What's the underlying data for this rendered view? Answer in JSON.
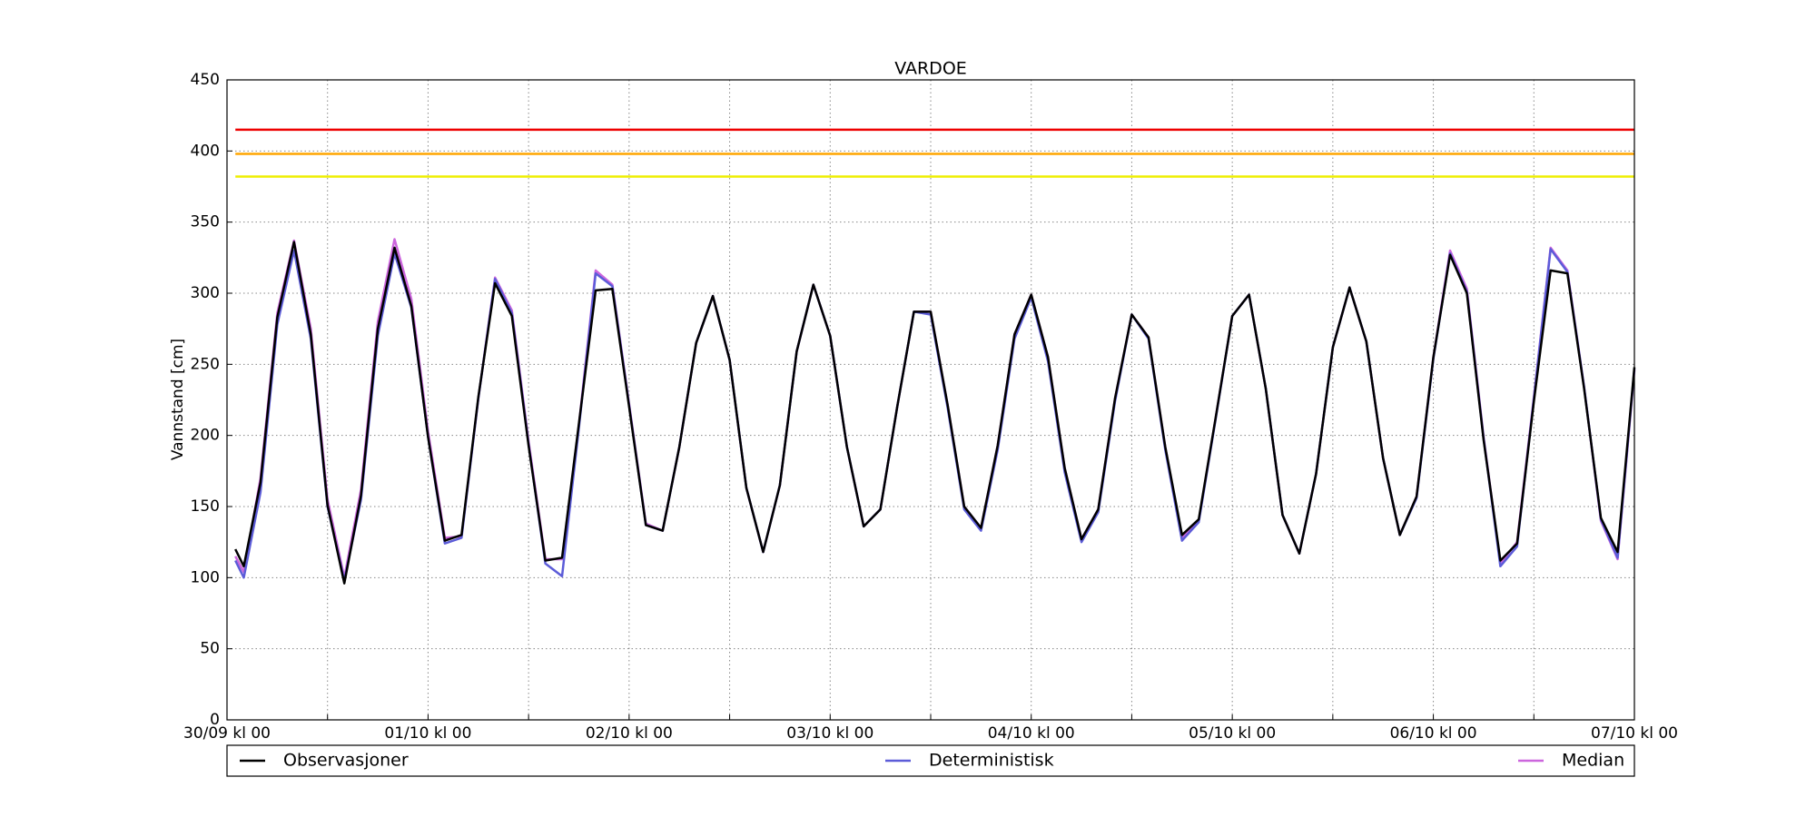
{
  "chart_data": {
    "type": "line",
    "title": "VARDOE",
    "y_label": "Vannstand [cm]",
    "x": [
      1,
      2,
      4,
      6,
      8,
      10,
      12,
      14,
      16,
      18,
      20,
      22,
      24,
      26,
      28,
      30,
      32,
      34,
      36,
      38,
      40,
      42,
      44,
      46,
      48,
      50,
      52,
      54,
      56,
      58,
      60,
      62,
      64,
      66,
      68,
      70,
      72,
      74,
      76,
      78,
      80,
      82,
      84,
      86,
      88,
      90,
      92,
      94,
      96,
      98,
      100,
      102,
      104,
      106,
      108,
      110,
      112,
      114,
      116,
      118,
      120,
      122,
      124,
      126,
      128,
      130,
      132,
      134,
      136,
      138,
      140,
      142,
      144,
      146,
      148,
      150,
      152,
      154,
      156,
      158,
      160,
      162,
      164,
      166,
      168
    ],
    "series": [
      {
        "name": "Median",
        "color": "#cc66dd",
        "values": [
          115,
          104,
          170,
          286,
          337,
          275,
          155,
          100,
          162,
          280,
          338,
          296,
          203,
          128,
          129,
          226,
          311,
          288,
          196,
          113,
          113,
          207,
          316,
          306,
          222,
          138,
          133,
          192,
          265,
          298,
          253,
          163,
          118,
          165,
          259,
          306,
          270,
          192,
          136,
          148,
          220,
          287,
          287,
          222,
          150,
          135,
          193,
          271,
          299,
          255,
          177,
          127,
          148,
          226,
          285,
          269,
          192,
          128,
          140,
          212,
          284,
          299,
          233,
          144,
          117,
          173,
          262,
          304,
          266,
          184,
          130,
          157,
          255,
          330,
          303,
          199,
          110,
          125,
          227,
          332,
          316,
          234,
          140,
          113,
          246
        ]
      },
      {
        "name": "Deterministisk",
        "color": "#5c5cd8",
        "values": [
          112,
          100,
          160,
          278,
          330,
          268,
          150,
          98,
          155,
          270,
          328,
          290,
          199,
          124,
          128,
          226,
          310,
          286,
          194,
          110,
          101,
          205,
          314,
          305,
          221,
          137,
          133,
          192,
          265,
          298,
          253,
          163,
          118,
          165,
          259,
          306,
          270,
          192,
          136,
          148,
          220,
          287,
          285,
          220,
          148,
          133,
          190,
          268,
          297,
          252,
          174,
          125,
          146,
          224,
          285,
          268,
          190,
          126,
          139,
          211,
          284,
          299,
          233,
          144,
          117,
          173,
          262,
          304,
          266,
          184,
          130,
          156,
          254,
          328,
          301,
          198,
          108,
          122,
          226,
          331,
          315,
          234,
          141,
          114,
          247
        ]
      },
      {
        "name": "Observasjoner",
        "color": "#000000",
        "values": [
          120,
          108,
          167,
          283,
          336,
          271,
          151,
          96,
          158,
          275,
          332,
          291,
          199,
          126,
          130,
          227,
          307,
          284,
          193,
          112,
          114,
          208,
          302,
          303,
          220,
          137,
          133,
          192,
          265,
          298,
          253,
          163,
          118,
          165,
          259,
          306,
          270,
          192,
          136,
          148,
          220,
          287,
          287,
          222,
          150,
          135,
          193,
          271,
          299,
          255,
          177,
          127,
          148,
          226,
          285,
          269,
          192,
          130,
          141,
          212,
          284,
          299,
          233,
          144,
          117,
          173,
          262,
          304,
          266,
          184,
          130,
          157,
          255,
          327,
          300,
          197,
          112,
          124,
          224,
          316,
          314,
          233,
          142,
          118,
          248
        ]
      }
    ],
    "thresholds": [
      {
        "value": 415,
        "color": "#ee0000"
      },
      {
        "value": 398,
        "color": "#ffa500"
      },
      {
        "value": 382,
        "color": "#eeee00"
      }
    ],
    "xlim": [
      0,
      168
    ],
    "xticks": [
      {
        "value": 0,
        "label": "30/09 kl 00"
      },
      {
        "value": 24,
        "label": "01/10 kl 00"
      },
      {
        "value": 48,
        "label": "02/10 kl 00"
      },
      {
        "value": 72,
        "label": "03/10 kl 00"
      },
      {
        "value": 96,
        "label": "04/10 kl 00"
      },
      {
        "value": 120,
        "label": "05/10 kl 00"
      },
      {
        "value": 144,
        "label": "06/10 kl 00"
      },
      {
        "value": 168,
        "label": "07/10 kl 00"
      }
    ],
    "xminorticks": [
      12,
      36,
      60,
      84,
      108,
      132,
      156
    ],
    "ylim": [
      0,
      450
    ],
    "yticks": [
      0,
      50,
      100,
      150,
      200,
      250,
      300,
      350,
      400,
      450
    ],
    "grid": true,
    "legend": "below"
  }
}
